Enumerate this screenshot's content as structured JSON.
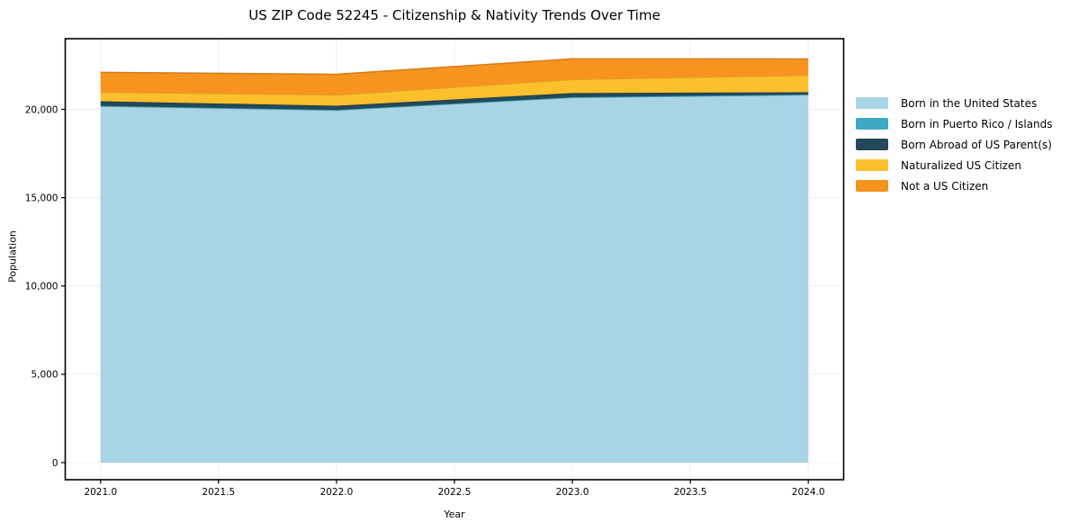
{
  "title": "US ZIP Code 52245 - Citizenship & Nativity Trends Over Time",
  "chart_data": {
    "type": "area",
    "stacked": true,
    "title": "US ZIP Code 52245 - Citizenship & Nativity Trends Over Time",
    "xlabel": "Year",
    "ylabel": "Population",
    "x": [
      2021,
      2022,
      2023,
      2024
    ],
    "series": [
      {
        "name": "Born in the United States",
        "color": "#a8d4e6",
        "values": [
          20180,
          19950,
          20670,
          20820
        ]
      },
      {
        "name": "Born in Puerto Rico / Islands",
        "color": "#41a8c4",
        "values": [
          20,
          20,
          20,
          20
        ]
      },
      {
        "name": "Born Abroad of US Parent(s)",
        "color": "#22485a",
        "values": [
          260,
          235,
          235,
          130
        ]
      },
      {
        "name": "Naturalized US Citizen",
        "color": "#fcc02d",
        "values": [
          510,
          610,
          765,
          965
        ]
      },
      {
        "name": "Not a US Citizen",
        "color": "#f79420",
        "values": [
          1120,
          1170,
          1170,
          915
        ]
      }
    ],
    "xticks": [
      2021.0,
      2021.5,
      2022.0,
      2022.5,
      2023.0,
      2023.5,
      2024.0
    ],
    "yticks": [
      0,
      5000,
      10000,
      15000,
      20000
    ],
    "xlim": [
      2020.85,
      2024.15
    ],
    "ylim": [
      -970,
      24000
    ],
    "grid": true,
    "legend_position": "right",
    "colors": {
      "grid": "#ededed",
      "axis": "#000000",
      "background": "#ffffff"
    }
  }
}
